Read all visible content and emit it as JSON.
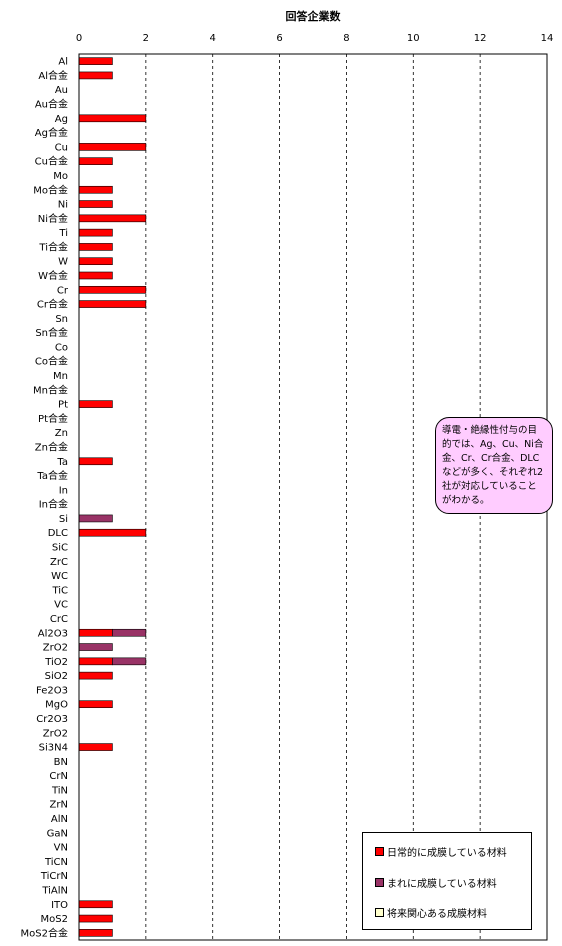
{
  "chart_data": {
    "type": "bar",
    "orientation": "horizontal",
    "stacked": true,
    "title": "回答企業数",
    "xlim": [
      0,
      14
    ],
    "xticks": [
      0,
      2,
      4,
      6,
      8,
      10,
      12,
      14
    ],
    "grid": "vertical dashed",
    "legend_position": "bottom-right",
    "categories": [
      "Al",
      "Al合金",
      "Au",
      "Au合金",
      "Ag",
      "Ag合金",
      "Cu",
      "Cu合金",
      "Mo",
      "Mo合金",
      "Ni",
      "Ni合金",
      "Ti",
      "Ti合金",
      "W",
      "W合金",
      "Cr",
      "Cr合金",
      "Sn",
      "Sn合金",
      "Co",
      "Co合金",
      "Mn",
      "Mn合金",
      "Pt",
      "Pt合金",
      "Zn",
      "Zn合金",
      "Ta",
      "Ta合金",
      "In",
      "In合金",
      "Si",
      "DLC",
      "SiC",
      "ZrC",
      "WC",
      "TiC",
      "VC",
      "CrC",
      "Al2O3",
      "ZrO2",
      "TiO2",
      "SiO2",
      "Fe2O3",
      "MgO",
      "Cr2O3",
      "ZrO2",
      "Si3N4",
      "BN",
      "CrN",
      "TiN",
      "ZrN",
      "AlN",
      "GaN",
      "VN",
      "TiCN",
      "TiCrN",
      "TiAlN",
      "ITO",
      "MoS2",
      "MoS2合金"
    ],
    "series": [
      {
        "name": "日常的に成膜している材料",
        "color": "#ff0000",
        "values": [
          1,
          1,
          0,
          0,
          2,
          0,
          2,
          1,
          0,
          1,
          1,
          2,
          1,
          1,
          1,
          1,
          2,
          2,
          0,
          0,
          0,
          0,
          0,
          0,
          1,
          0,
          0,
          0,
          1,
          0,
          0,
          0,
          0,
          2,
          0,
          0,
          0,
          0,
          0,
          0,
          1,
          0,
          1,
          1,
          0,
          1,
          0,
          0,
          1,
          0,
          0,
          0,
          0,
          0,
          0,
          0,
          0,
          0,
          0,
          1,
          1,
          1
        ]
      },
      {
        "name": "まれに成膜している材料",
        "color": "#993366",
        "values": [
          0,
          0,
          0,
          0,
          0,
          0,
          0,
          0,
          0,
          0,
          0,
          0,
          0,
          0,
          0,
          0,
          0,
          0,
          0,
          0,
          0,
          0,
          0,
          0,
          0,
          0,
          0,
          0,
          0,
          0,
          0,
          0,
          1,
          0,
          0,
          0,
          0,
          0,
          0,
          0,
          1,
          1,
          1,
          0,
          0,
          0,
          0,
          0,
          0,
          0,
          0,
          0,
          0,
          0,
          0,
          0,
          0,
          0,
          0,
          0,
          0,
          0
        ]
      },
      {
        "name": "将来関心ある成膜材料",
        "color": "#ffffcc",
        "values": [
          0,
          0,
          0,
          0,
          0,
          0,
          0,
          0,
          0,
          0,
          0,
          0,
          0,
          0,
          0,
          0,
          0,
          0,
          0,
          0,
          0,
          0,
          0,
          0,
          0,
          0,
          0,
          0,
          0,
          0,
          0,
          0,
          0,
          0,
          0,
          0,
          0,
          0,
          0,
          0,
          0,
          0,
          0,
          0,
          0,
          0,
          0,
          0,
          0,
          0,
          0,
          0,
          0,
          0,
          0,
          0,
          0,
          0,
          0,
          0,
          0,
          0
        ]
      }
    ],
    "annotation": "導電・絶縁性付与の目的では、Ag、Cu、Ni合金、Cr、Cr合金、DLCなどが多く、それぞれ2社が対応していることがわかる。"
  }
}
